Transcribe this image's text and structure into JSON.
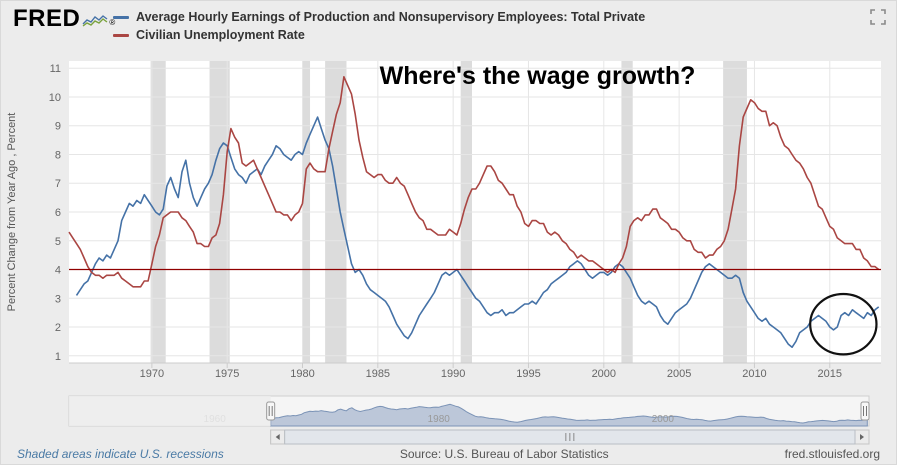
{
  "header": {
    "logo_text": "FRED",
    "registered_mark": "®",
    "legend": [
      {
        "label": "Average Hourly Earnings of Production and Nonsupervisory Employees: Total Private",
        "color": "#4572a7"
      },
      {
        "label": "Civilian Unemployment Rate",
        "color": "#aa4643"
      }
    ]
  },
  "footer": {
    "recession_note": "Shaded areas indicate U.S. recessions",
    "source": "Source: U.S. Bureau of Labor Statistics",
    "site": "fred.stlouisfed.org"
  },
  "chart_data": {
    "type": "line",
    "ylabel": "Percent Change from Year Ago , Percent",
    "xlim": [
      1964.5,
      2018.4
    ],
    "ylim": [
      0.75,
      11.25
    ],
    "x_ticks": [
      1970,
      1975,
      1980,
      1985,
      1990,
      1995,
      2000,
      2005,
      2010,
      2015
    ],
    "y_ticks": [
      1,
      2,
      3,
      4,
      5,
      6,
      7,
      8,
      9,
      10,
      11
    ],
    "grid": true,
    "legend_position": "top-left",
    "colors": {
      "plot_bg": "#ffffff",
      "page_bg": "#ececec",
      "grid": "#e6e6e6",
      "axis_line": "#cccccc",
      "recession": "#dcdcdc",
      "blue": "#4572a7",
      "red": "#aa4643",
      "hline": "#900000"
    },
    "recessions": [
      [
        1969.92,
        1970.92
      ],
      [
        1973.83,
        1975.17
      ],
      [
        1980.0,
        1980.5
      ],
      [
        1981.5,
        1982.92
      ],
      [
        1990.5,
        1991.25
      ],
      [
        2001.17,
        2001.92
      ],
      [
        2007.92,
        2009.5
      ]
    ],
    "hline": {
      "value": 4.0,
      "color": "#900000"
    },
    "annotations": {
      "headline": {
        "text": "Where's the wage growth?",
        "x_year": 1995.6,
        "y_value": 10.45
      },
      "circle": {
        "x_year": 2015.9,
        "y_value": 2.1,
        "rx_years": 2.2,
        "ry_units": 1.05,
        "color": "#111111"
      }
    },
    "series": [
      {
        "name": "Average Hourly Earnings of Production and Nonsupervisory Employees: Total Private",
        "color": "#4572a7",
        "x_start": 1965.0,
        "x_step": 0.25,
        "values": [
          3.1,
          3.3,
          3.5,
          3.6,
          3.9,
          4.2,
          4.4,
          4.3,
          4.5,
          4.4,
          4.7,
          5.0,
          5.7,
          6.0,
          6.3,
          6.2,
          6.4,
          6.3,
          6.6,
          6.4,
          6.2,
          6.0,
          5.9,
          6.1,
          6.9,
          7.2,
          6.8,
          6.5,
          7.4,
          7.8,
          7.0,
          6.5,
          6.2,
          6.5,
          6.8,
          7.0,
          7.3,
          7.8,
          8.2,
          8.4,
          8.3,
          7.9,
          7.5,
          7.3,
          7.2,
          7.0,
          7.3,
          7.4,
          7.5,
          7.3,
          7.6,
          7.8,
          8.0,
          8.3,
          8.2,
          8.0,
          7.9,
          7.8,
          8.0,
          8.1,
          8.0,
          8.4,
          8.7,
          9.0,
          9.3,
          8.9,
          8.5,
          8.2,
          7.6,
          6.8,
          6.0,
          5.4,
          4.8,
          4.2,
          3.9,
          4.0,
          3.8,
          3.5,
          3.3,
          3.2,
          3.1,
          3.0,
          2.9,
          2.7,
          2.4,
          2.1,
          1.9,
          1.7,
          1.6,
          1.8,
          2.1,
          2.4,
          2.6,
          2.8,
          3.0,
          3.2,
          3.5,
          3.8,
          3.9,
          3.8,
          3.9,
          4.0,
          3.8,
          3.6,
          3.4,
          3.2,
          3.0,
          2.9,
          2.7,
          2.5,
          2.4,
          2.5,
          2.5,
          2.6,
          2.4,
          2.5,
          2.5,
          2.6,
          2.7,
          2.8,
          2.8,
          2.9,
          2.8,
          3.0,
          3.2,
          3.3,
          3.5,
          3.6,
          3.7,
          3.8,
          3.9,
          4.1,
          4.2,
          4.3,
          4.2,
          4.0,
          3.8,
          3.7,
          3.8,
          3.9,
          3.9,
          3.8,
          3.9,
          4.1,
          4.2,
          4.1,
          3.9,
          3.7,
          3.4,
          3.1,
          2.9,
          2.8,
          2.9,
          2.8,
          2.7,
          2.4,
          2.2,
          2.1,
          2.3,
          2.5,
          2.6,
          2.7,
          2.8,
          3.0,
          3.3,
          3.6,
          3.9,
          4.1,
          4.2,
          4.1,
          4.0,
          3.9,
          3.8,
          3.7,
          3.7,
          3.8,
          3.7,
          3.2,
          2.9,
          2.7,
          2.5,
          2.3,
          2.2,
          2.3,
          2.1,
          2.0,
          1.9,
          1.8,
          1.6,
          1.4,
          1.3,
          1.5,
          1.8,
          1.9,
          2.0,
          2.2,
          2.3,
          2.4,
          2.3,
          2.2,
          2.0,
          1.9,
          2.0,
          2.4,
          2.5,
          2.4,
          2.6,
          2.5,
          2.4,
          2.3,
          2.5,
          2.4,
          2.6,
          2.7
        ]
      },
      {
        "name": "Civilian Unemployment Rate",
        "color": "#aa4643",
        "x_start": 1964.5,
        "x_step": 0.25,
        "values": [
          5.3,
          5.1,
          4.9,
          4.7,
          4.4,
          4.1,
          3.9,
          3.8,
          3.8,
          3.7,
          3.8,
          3.8,
          3.8,
          3.9,
          3.7,
          3.6,
          3.5,
          3.4,
          3.4,
          3.4,
          3.6,
          3.6,
          4.2,
          4.8,
          5.2,
          5.8,
          5.9,
          6.0,
          6.0,
          6.0,
          5.8,
          5.7,
          5.5,
          5.3,
          4.9,
          4.9,
          4.8,
          4.8,
          5.1,
          5.2,
          5.6,
          6.6,
          8.1,
          8.9,
          8.6,
          8.4,
          7.7,
          7.6,
          7.7,
          7.8,
          7.5,
          7.2,
          6.9,
          6.6,
          6.3,
          6.0,
          6.0,
          5.9,
          5.9,
          5.7,
          5.9,
          6.0,
          6.3,
          7.5,
          7.7,
          7.5,
          7.4,
          7.4,
          7.4,
          8.2,
          8.8,
          9.4,
          9.8,
          10.7,
          10.4,
          10.1,
          9.4,
          8.5,
          7.9,
          7.4,
          7.3,
          7.2,
          7.3,
          7.3,
          7.1,
          7.0,
          7.0,
          7.2,
          7.0,
          6.9,
          6.6,
          6.3,
          6.0,
          5.8,
          5.7,
          5.4,
          5.4,
          5.3,
          5.2,
          5.2,
          5.2,
          5.4,
          5.3,
          5.2,
          5.6,
          6.1,
          6.5,
          6.8,
          6.8,
          7.0,
          7.3,
          7.6,
          7.6,
          7.4,
          7.1,
          7.0,
          6.8,
          6.6,
          6.6,
          6.2,
          6.0,
          5.6,
          5.5,
          5.7,
          5.7,
          5.6,
          5.6,
          5.3,
          5.2,
          5.3,
          5.2,
          5.0,
          4.9,
          4.7,
          4.6,
          4.4,
          4.5,
          4.4,
          4.3,
          4.3,
          4.2,
          4.1,
          4.0,
          3.9,
          4.0,
          3.9,
          4.2,
          4.4,
          4.8,
          5.5,
          5.7,
          5.8,
          5.7,
          5.9,
          5.9,
          6.1,
          6.1,
          5.8,
          5.7,
          5.6,
          5.4,
          5.4,
          5.3,
          5.1,
          5.0,
          5.0,
          4.7,
          4.6,
          4.6,
          4.4,
          4.5,
          4.5,
          4.7,
          4.8,
          5.0,
          5.4,
          6.1,
          6.8,
          8.3,
          9.3,
          9.6,
          9.9,
          9.8,
          9.6,
          9.5,
          9.5,
          9.0,
          9.1,
          9.0,
          8.6,
          8.3,
          8.2,
          8.0,
          7.8,
          7.7,
          7.5,
          7.2,
          7.0,
          6.6,
          6.2,
          6.1,
          5.8,
          5.5,
          5.4,
          5.1,
          5.0,
          4.9,
          4.9,
          4.9,
          4.7,
          4.7,
          4.4,
          4.3,
          4.1,
          4.1,
          4.0
        ]
      }
    ],
    "navigator": {
      "xlim": [
        1947,
        2018.4
      ],
      "window": [
        1965.0,
        2018.4
      ],
      "ymax": 12,
      "labels": [
        {
          "text": "1960",
          "year": 1960
        },
        {
          "text": "1980",
          "year": 1980
        },
        {
          "text": "2000",
          "year": 2000
        }
      ]
    }
  }
}
